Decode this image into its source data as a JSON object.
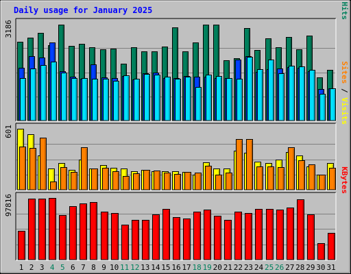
{
  "chart_data": {
    "type": "bar",
    "title": "Daily usage for January 2025",
    "categories": [
      "1",
      "2",
      "3",
      "4",
      "5",
      "6",
      "7",
      "8",
      "9",
      "10",
      "11",
      "12",
      "13",
      "14",
      "15",
      "16",
      "17",
      "18",
      "19",
      "20",
      "21",
      "22",
      "23",
      "24",
      "25",
      "26",
      "27",
      "28",
      "29",
      "30",
      "31"
    ],
    "weekend_days": [
      "4",
      "5",
      "11",
      "12",
      "18",
      "19",
      "25",
      "26"
    ],
    "panels": [
      {
        "id": "hits-files-pages",
        "ylim": [
          0,
          3186
        ],
        "max_tick_label": "3186",
        "right_axis_label": [
          "Pages",
          "Files",
          "Hits"
        ],
        "series": [
          {
            "name": "Hits",
            "values": [
              2602,
              2726,
              2898,
              2493,
              3153,
              2461,
              2538,
              2425,
              2345,
              2365,
              1870,
              2408,
              2288,
              2272,
              2436,
              3066,
              2278,
              2580,
              3153,
              3153,
              1978,
              2067,
              3042,
              2334,
              2708,
              2427,
              2754,
              2342,
              2810,
              1419,
              1678
            ]
          },
          {
            "name": "Files",
            "values": [
              1745,
              2118,
              2084,
              2566,
              1633,
              1439,
              1376,
              1862,
              1419,
              1400,
              1478,
              1366,
              1551,
              1571,
              1390,
              1399,
              1470,
              1449,
              1457,
              1399,
              1399,
              2012,
              2115,
              1596,
              1692,
              1706,
              1771,
              1744,
              1629,
              1041,
              1054
            ]
          },
          {
            "name": "Pages",
            "values": [
              1390,
              1720,
              1831,
              1950,
              1586,
              1390,
              1390,
              1380,
              1380,
              1300,
              1495,
              1380,
              1532,
              1514,
              1454,
              1380,
              1440,
              1117,
              1524,
              1466,
              1390,
              1380,
              2108,
              1700,
              2007,
              1560,
              1808,
              1790,
              1683,
              882,
              1054
            ]
          }
        ]
      },
      {
        "id": "visits-sites",
        "ylim": [
          0,
          601
        ],
        "max_tick_label": "601",
        "right_axis_label": [
          "Sites",
          "Visits"
        ],
        "series": [
          {
            "name": "Visits",
            "values": [
              601,
              549,
              340,
              208,
              260,
              194,
              295,
              209,
              244,
              217,
              209,
              181,
              194,
              183,
              185,
              183,
              176,
              149,
              272,
              209,
              210,
              386,
              367,
              278,
              263,
              298,
              373,
              340,
              232,
              150,
              264
            ]
          },
          {
            "name": "Sites",
            "values": [
              426,
              415,
              513,
              82,
              223,
              176,
              417,
              209,
              217,
              179,
              135,
              165,
              194,
              187,
              166,
              155,
              176,
              172,
              239,
              149,
              168,
              503,
              501,
              231,
              232,
              223,
              419,
              289,
              250,
              150,
              219
            ]
          }
        ]
      },
      {
        "id": "kbytes",
        "ylim": [
          0,
          97816
        ],
        "max_tick_label": "97816",
        "right_axis_label": [
          "KBytes"
        ],
        "series": [
          {
            "name": "KBytes",
            "values": [
              46150,
              97200,
              97161,
              97816,
              70600,
              84600,
              89600,
              91000,
              75800,
              73800,
              55700,
              63500,
              63300,
              71600,
              80300,
              67900,
              65700,
              76000,
              79500,
              69600,
              63300,
              76500,
              74100,
              79900,
              80800,
              79500,
              82800,
              96100,
              71500,
              25900,
              42800
            ]
          }
        ]
      }
    ],
    "colors": {
      "Hits": "#00805C",
      "Files": "#0040FF",
      "Pages": "#00E0FF",
      "Visits": "#FFFF00",
      "Sites": "#FF8000",
      "KBytes": "#FF0000",
      "title": "#0000FF",
      "weekday_label": "#000000",
      "weekend_label": "#00805C",
      "background": "#C0C0C0"
    }
  }
}
